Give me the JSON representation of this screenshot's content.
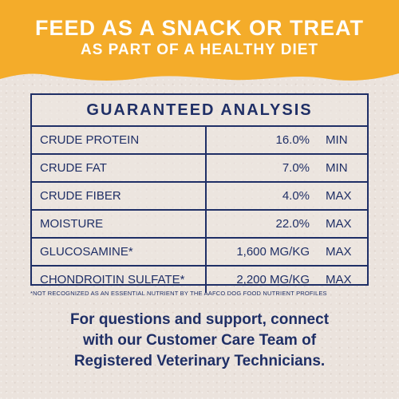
{
  "colors": {
    "band": "#f4ac2a",
    "navy": "#1f2f66",
    "background": "#ebe3dd"
  },
  "headline": {
    "line1": "FEED AS A SNACK OR TREAT",
    "line2": "AS PART OF A HEALTHY DIET"
  },
  "analysis": {
    "title": "GUARANTEED ANALYSIS",
    "rows": [
      {
        "name": "CRUDE PROTEIN",
        "value": "16.0%",
        "unit": "MIN"
      },
      {
        "name": "CRUDE FAT",
        "value": "7.0%",
        "unit": "MIN"
      },
      {
        "name": "CRUDE FIBER",
        "value": "4.0%",
        "unit": "MAX"
      },
      {
        "name": "MOISTURE",
        "value": "22.0%",
        "unit": "MAX"
      },
      {
        "name": "GLUCOSAMINE*",
        "value": "1,600 MG/KG",
        "unit": "MAX"
      },
      {
        "name": "CHONDROITIN SULFATE*",
        "value": "2,200 MG/KG",
        "unit": "MAX"
      }
    ]
  },
  "footnote": "*NOT RECOGNIZED AS AN ESSENTIAL NUTRIENT BY THE AAFCO DOG FOOD NUTRIENT PROFILES",
  "contact": {
    "line1": "For questions and support, connect",
    "line2": "with our Customer Care Team of",
    "line3": "Registered Veterinary Technicians."
  }
}
